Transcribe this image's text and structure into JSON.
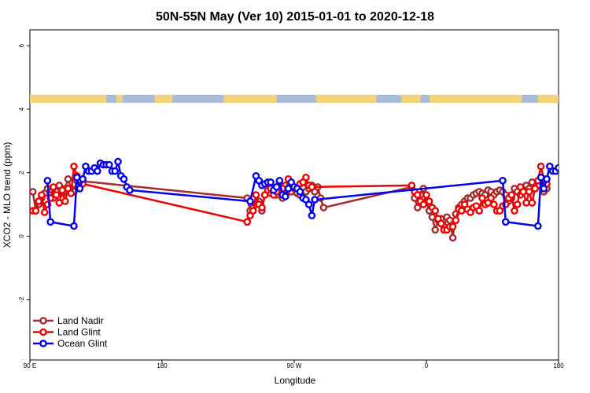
{
  "chart_data": {
    "type": "line",
    "title": "50N-55N May (Ver 10)   2015-01-01 to 2020-12-18",
    "xlabel": "Longitude",
    "ylabel": "XCO2 - MLO trend (ppm)",
    "xlim": [
      90,
      450
    ],
    "ylim": [
      -3.9,
      6.5
    ],
    "x_ticks": [
      {
        "value": 90,
        "label": "90 E"
      },
      {
        "value": 180,
        "label": "180"
      },
      {
        "value": 270,
        "label": "90 W"
      },
      {
        "value": 360,
        "label": "0"
      },
      {
        "value": 450,
        "label": "180"
      }
    ],
    "y_ticks": [
      -2,
      0,
      2,
      4,
      6
    ],
    "grid": false,
    "legend_position": "bottom-left",
    "surface_band": {
      "y_range": [
        4.2,
        4.45
      ],
      "land_color": "#f5d379",
      "ocean_color": "#a9bbdd",
      "land_segments": [
        [
          90,
          142
        ],
        [
          149,
          153
        ],
        [
          175,
          187
        ],
        [
          222,
          258
        ],
        [
          285,
          326
        ],
        [
          343,
          356
        ],
        [
          362,
          425
        ],
        [
          436,
          450
        ]
      ]
    },
    "series": [
      {
        "name": "Land Nadir",
        "color": "#a52a2a",
        "points": [
          [
            92,
            1.4
          ],
          [
            94,
            0.8
          ],
          [
            96,
            1.0
          ],
          [
            98,
            1.2
          ],
          [
            100,
            1.35
          ],
          [
            102,
            1.5
          ],
          [
            104,
            1.3
          ],
          [
            106,
            1.2
          ],
          [
            108,
            1.4
          ],
          [
            110,
            1.6
          ],
          [
            112,
            1.35
          ],
          [
            114,
            1.5
          ],
          [
            116,
            1.8
          ],
          [
            118,
            1.5
          ],
          [
            120,
            1.4
          ],
          [
            122,
            1.75
          ],
          [
            238,
            1.2
          ],
          [
            240,
            0.8
          ],
          [
            242,
            0.9
          ],
          [
            244,
            1.0
          ],
          [
            246,
            1.1
          ],
          [
            248,
            0.8
          ],
          [
            250,
            1.3
          ],
          [
            252,
            1.4
          ],
          [
            254,
            1.35
          ],
          [
            256,
            1.5
          ],
          [
            258,
            1.3
          ],
          [
            260,
            1.5
          ],
          [
            262,
            1.2
          ],
          [
            264,
            1.6
          ],
          [
            266,
            1.5
          ],
          [
            268,
            1.4
          ],
          [
            270,
            1.5
          ],
          [
            272,
            1.35
          ],
          [
            274,
            1.3
          ],
          [
            276,
            1.55
          ],
          [
            278,
            1.4
          ],
          [
            280,
            1.5
          ],
          [
            282,
            1.6
          ],
          [
            284,
            1.4
          ],
          [
            286,
            1.55
          ],
          [
            288,
            1.2
          ],
          [
            290,
            0.9
          ],
          [
            350,
            1.55
          ],
          [
            352,
            1.2
          ],
          [
            354,
            0.9
          ],
          [
            356,
            1.3
          ],
          [
            358,
            1.5
          ],
          [
            360,
            1.1
          ],
          [
            362,
            0.8
          ],
          [
            364,
            0.6
          ],
          [
            366,
            0.2
          ],
          [
            368,
            0.5
          ],
          [
            370,
            0.55
          ],
          [
            372,
            0.3
          ],
          [
            374,
            0.6
          ],
          [
            376,
            0.5
          ],
          [
            378,
            -0.05
          ],
          [
            380,
            0.7
          ],
          [
            382,
            0.9
          ],
          [
            384,
            1.0
          ],
          [
            386,
            1.1
          ],
          [
            388,
            1.2
          ],
          [
            390,
            1.2
          ],
          [
            392,
            1.3
          ],
          [
            394,
            1.35
          ],
          [
            396,
            1.4
          ],
          [
            398,
            1.35
          ],
          [
            400,
            1.3
          ],
          [
            402,
            1.45
          ],
          [
            404,
            1.4
          ],
          [
            406,
            1.3
          ],
          [
            408,
            1.4
          ],
          [
            410,
            1.45
          ],
          [
            412,
            1.4
          ],
          [
            414,
            1.3
          ],
          [
            416,
            1.1
          ],
          [
            418,
            1.2
          ],
          [
            420,
            1.5
          ],
          [
            422,
            1.4
          ],
          [
            424,
            1.3
          ],
          [
            426,
            1.5
          ],
          [
            428,
            1.6
          ],
          [
            430,
            1.5
          ],
          [
            432,
            1.7
          ],
          [
            434,
            1.5
          ],
          [
            436,
            1.6
          ],
          [
            438,
            1.8
          ],
          [
            440,
            1.4
          ],
          [
            442,
            1.5
          ]
        ]
      },
      {
        "name": "Land Glint",
        "color": "#ee0000",
        "points": [
          [
            92,
            0.8
          ],
          [
            94,
            0.8
          ],
          [
            96,
            1.1
          ],
          [
            98,
            1.3
          ],
          [
            100,
            0.75
          ],
          [
            102,
            1.0
          ],
          [
            104,
            1.2
          ],
          [
            106,
            1.55
          ],
          [
            108,
            1.3
          ],
          [
            110,
            1.05
          ],
          [
            112,
            1.45
          ],
          [
            114,
            1.1
          ],
          [
            116,
            1.5
          ],
          [
            118,
            1.35
          ],
          [
            120,
            2.2
          ],
          [
            122,
            1.9
          ],
          [
            124,
            1.75
          ],
          [
            126,
            1.65
          ],
          [
            238,
            0.45
          ],
          [
            240,
            0.65
          ],
          [
            242,
            0.8
          ],
          [
            244,
            1.3
          ],
          [
            246,
            1.0
          ],
          [
            248,
            0.9
          ],
          [
            250,
            1.3
          ],
          [
            252,
            1.45
          ],
          [
            254,
            1.5
          ],
          [
            256,
            1.3
          ],
          [
            258,
            1.4
          ],
          [
            260,
            1.7
          ],
          [
            262,
            1.5
          ],
          [
            264,
            1.3
          ],
          [
            266,
            1.8
          ],
          [
            268,
            1.6
          ],
          [
            270,
            1.55
          ],
          [
            272,
            1.5
          ],
          [
            274,
            1.65
          ],
          [
            276,
            1.7
          ],
          [
            278,
            1.85
          ],
          [
            280,
            1.6
          ],
          [
            282,
            1.55
          ],
          [
            350,
            1.6
          ],
          [
            352,
            1.4
          ],
          [
            354,
            1.3
          ],
          [
            356,
            1.1
          ],
          [
            358,
            1.0
          ],
          [
            360,
            1.3
          ],
          [
            362,
            1.1
          ],
          [
            364,
            0.9
          ],
          [
            366,
            0.8
          ],
          [
            368,
            0.55
          ],
          [
            370,
            0.4
          ],
          [
            372,
            0.2
          ],
          [
            374,
            0.2
          ],
          [
            376,
            0.3
          ],
          [
            378,
            0.3
          ],
          [
            380,
            0.5
          ],
          [
            382,
            0.85
          ],
          [
            384,
            0.8
          ],
          [
            386,
            1.0
          ],
          [
            388,
            0.85
          ],
          [
            390,
            0.75
          ],
          [
            392,
            0.9
          ],
          [
            394,
            0.95
          ],
          [
            396,
            0.8
          ],
          [
            398,
            1.2
          ],
          [
            400,
            1.0
          ],
          [
            402,
            1.05
          ],
          [
            404,
            1.2
          ],
          [
            406,
            1.0
          ],
          [
            408,
            0.8
          ],
          [
            410,
            0.8
          ],
          [
            412,
            0.95
          ],
          [
            414,
            1.0
          ],
          [
            416,
            1.2
          ],
          [
            418,
            1.3
          ],
          [
            420,
            0.8
          ],
          [
            422,
            1.0
          ],
          [
            424,
            1.55
          ],
          [
            426,
            1.4
          ],
          [
            428,
            1.05
          ],
          [
            430,
            1.4
          ],
          [
            432,
            1.05
          ],
          [
            434,
            1.5
          ],
          [
            436,
            1.75
          ],
          [
            438,
            2.2
          ],
          [
            440,
            1.8
          ],
          [
            442,
            1.65
          ]
        ]
      },
      {
        "name": "Ocean Glint",
        "color": "#0000ee",
        "points": [
          [
            102,
            1.75
          ],
          [
            104,
            0.45
          ],
          [
            120,
            0.32
          ],
          [
            122,
            1.85
          ],
          [
            124,
            1.5
          ],
          [
            126,
            1.8
          ],
          [
            128,
            2.2
          ],
          [
            130,
            2.05
          ],
          [
            132,
            2.05
          ],
          [
            134,
            2.15
          ],
          [
            136,
            2.05
          ],
          [
            138,
            2.3
          ],
          [
            140,
            2.25
          ],
          [
            142,
            2.25
          ],
          [
            144,
            2.25
          ],
          [
            146,
            2.05
          ],
          [
            148,
            2.05
          ],
          [
            150,
            2.35
          ],
          [
            152,
            1.9
          ],
          [
            154,
            1.8
          ],
          [
            156,
            1.55
          ],
          [
            158,
            1.45
          ],
          [
            240,
            1.1
          ],
          [
            244,
            1.9
          ],
          [
            246,
            1.75
          ],
          [
            248,
            1.6
          ],
          [
            250,
            1.65
          ],
          [
            252,
            1.7
          ],
          [
            254,
            1.7
          ],
          [
            256,
            1.45
          ],
          [
            258,
            1.55
          ],
          [
            260,
            1.75
          ],
          [
            262,
            1.3
          ],
          [
            264,
            1.25
          ],
          [
            266,
            1.5
          ],
          [
            268,
            1.7
          ],
          [
            270,
            1.55
          ],
          [
            272,
            1.5
          ],
          [
            274,
            1.4
          ],
          [
            276,
            1.2
          ],
          [
            278,
            1.15
          ],
          [
            280,
            1.0
          ],
          [
            282,
            0.65
          ],
          [
            284,
            1.15
          ],
          [
            412,
            1.75
          ],
          [
            414,
            0.45
          ],
          [
            436,
            0.32
          ],
          [
            438,
            1.85
          ],
          [
            440,
            1.5
          ],
          [
            442,
            1.8
          ],
          [
            444,
            2.2
          ],
          [
            446,
            2.05
          ],
          [
            448,
            2.05
          ],
          [
            450,
            2.15
          ],
          [
            452,
            2.05
          ]
        ]
      }
    ]
  }
}
